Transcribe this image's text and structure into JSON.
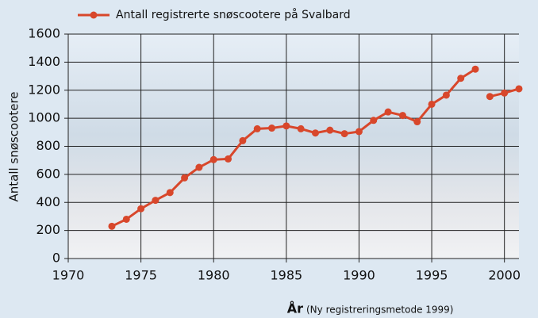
{
  "chart_data": {
    "type": "line",
    "legend": "Antall registrerte snøscootere på Svalbard",
    "ylabel": "Antall snøscootere",
    "xlabel": "År",
    "xlabel_note": "(Ny registreringsmetode 1999)",
    "x": [
      1973,
      1974,
      1975,
      1976,
      1977,
      1978,
      1979,
      1980,
      1981,
      1982,
      1983,
      1984,
      1985,
      1986,
      1987,
      1988,
      1989,
      1990,
      1991,
      1992,
      1993,
      1994,
      1995,
      1996,
      1997,
      1998,
      1999,
      2000,
      2001
    ],
    "series": [
      {
        "name": "Antall registrerte snøscootere på Svalbard",
        "color": "#d8472b",
        "values": [
          230,
          280,
          355,
          415,
          470,
          575,
          650,
          705,
          710,
          840,
          925,
          930,
          945,
          925,
          895,
          915,
          890,
          905,
          985,
          1045,
          1020,
          975,
          1100,
          1165,
          1285,
          1350,
          null,
          null,
          null
        ]
      },
      {
        "color": "#d8472b",
        "values": [
          null,
          null,
          null,
          null,
          null,
          null,
          null,
          null,
          null,
          null,
          null,
          null,
          null,
          null,
          null,
          null,
          null,
          null,
          null,
          null,
          null,
          null,
          null,
          null,
          null,
          null,
          1155,
          1180,
          1210
        ]
      }
    ],
    "xlim": [
      1970,
      2001
    ],
    "xticks": [
      1970,
      1975,
      1980,
      1985,
      1990,
      1995,
      2000
    ],
    "ylim": [
      0,
      1600
    ],
    "yticks": [
      0,
      200,
      400,
      600,
      800,
      1000,
      1200,
      1400,
      1600
    ],
    "grid": true
  }
}
